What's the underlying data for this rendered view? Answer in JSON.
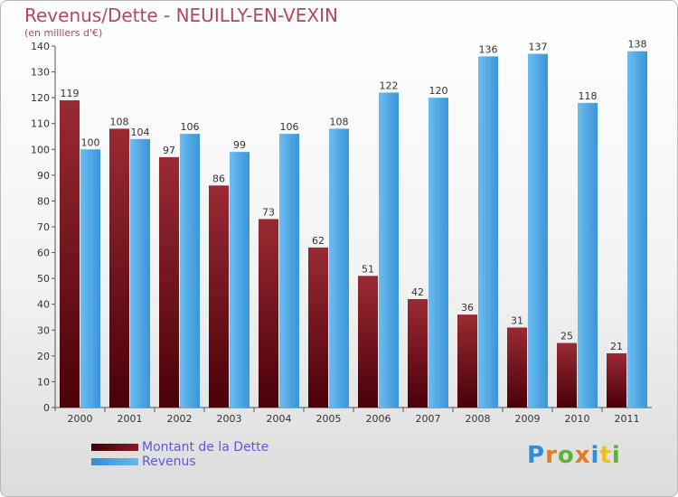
{
  "title": "Revenus/Dette - NEUILLY-EN-VEXIN",
  "subtitle": "(en milliers d'€)",
  "legend": {
    "debt_label": "Montant de la Dette",
    "revenue_label": "Revenus"
  },
  "logo": {
    "text": "Proxiti",
    "letters": [
      "P",
      "r",
      "o",
      "x",
      "i",
      "t",
      "i"
    ],
    "letter_colors": [
      "#2f8fd6",
      "#e8791c",
      "#5db33a",
      "#e8791c",
      "#2f8fd6",
      "#e8c31c",
      "#5db33a"
    ]
  },
  "colors": {
    "debt_dark": "#4a0008",
    "debt_light": "#9a2a33",
    "revenue_dark": "#2a86cf",
    "revenue_light": "#6cbcf0",
    "title": "#b5475a",
    "legend_text": "#5a5adc"
  },
  "chart_data": {
    "type": "bar",
    "title": "Revenus/Dette - NEUILLY-EN-VEXIN",
    "ylabel": "(en milliers d'€)",
    "xlabel": "",
    "categories": [
      "2000",
      "2001",
      "2002",
      "2003",
      "2004",
      "2005",
      "2006",
      "2007",
      "2008",
      "2009",
      "2010",
      "2011"
    ],
    "series": [
      {
        "name": "Montant de la Dette",
        "values": [
          119,
          108,
          97,
          86,
          73,
          62,
          51,
          42,
          36,
          31,
          25,
          21
        ]
      },
      {
        "name": "Revenus",
        "values": [
          100,
          104,
          106,
          99,
          106,
          108,
          122,
          120,
          136,
          137,
          118,
          138
        ]
      }
    ],
    "ylim": [
      0,
      140
    ],
    "yticks": [
      0,
      10,
      20,
      30,
      40,
      50,
      60,
      70,
      80,
      90,
      100,
      110,
      120,
      130,
      140
    ],
    "grid": false,
    "legend_position": "bottom-left"
  }
}
